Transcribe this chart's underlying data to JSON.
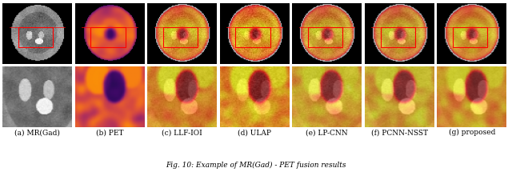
{
  "num_cols": 7,
  "num_rows": 2,
  "labels": [
    "(a) MR(Gad)",
    "(b) PET",
    "(c) LLF-IOI",
    "(d) ULAP",
    "(e) LP-CNN",
    "(f) PCNN-NSST",
    "(g) proposed"
  ],
  "caption": "Fig. 10: Example of MR(Gad) - PET fusion results",
  "background_color": "#ffffff",
  "label_fontsize": 6.5,
  "caption_fontsize": 6.5,
  "figwidth": 6.4,
  "figheight": 2.15,
  "dpi": 100
}
